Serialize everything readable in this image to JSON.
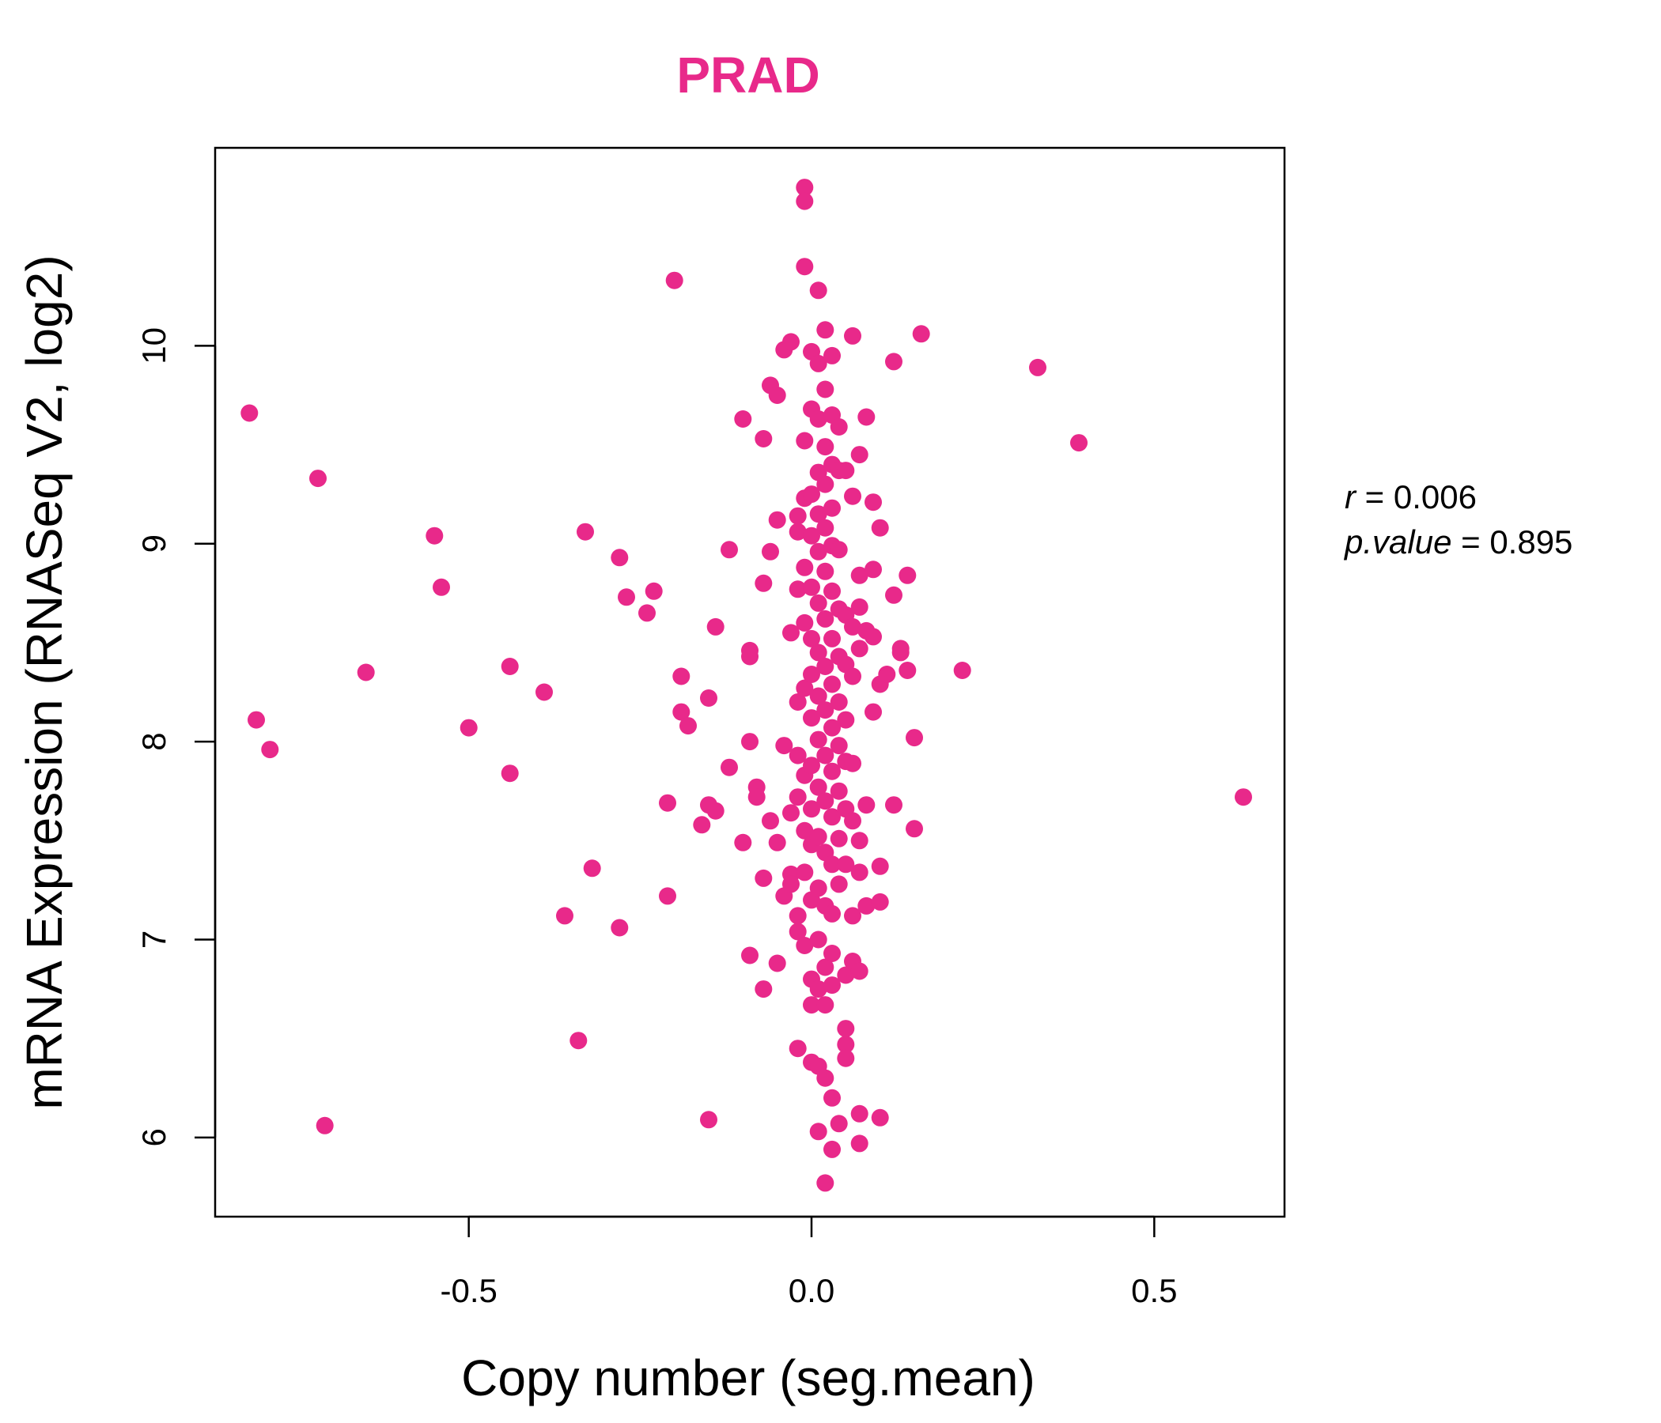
{
  "chart_data": {
    "type": "scatter",
    "title": "PRAD",
    "xlabel": "Copy number (seg.mean)",
    "ylabel": "mRNA Expression (RNASeq V2, log2)",
    "xlim": [
      -0.87,
      0.69
    ],
    "ylim": [
      5.6,
      11.0
    ],
    "x_ticks": [
      -0.5,
      0.0,
      0.5
    ],
    "x_tick_labels": [
      "-0.5",
      "0.0",
      "0.5"
    ],
    "y_ticks": [
      6,
      7,
      8,
      9,
      10
    ],
    "y_tick_labels": [
      "6",
      "7",
      "8",
      "9",
      "10"
    ],
    "grid": false,
    "legend": "none",
    "point_color": "#e8298a",
    "title_color": "#e8298a",
    "stats": {
      "r_label": "r",
      "r_value": "0.006",
      "p_label": "p.value",
      "p_value": "0.895"
    },
    "points": [
      [
        -0.82,
        9.66
      ],
      [
        -0.81,
        8.11
      ],
      [
        -0.79,
        7.96
      ],
      [
        -0.72,
        9.33
      ],
      [
        -0.71,
        6.06
      ],
      [
        -0.65,
        8.35
      ],
      [
        -0.55,
        9.04
      ],
      [
        -0.54,
        8.78
      ],
      [
        -0.5,
        8.07
      ],
      [
        -0.44,
        8.38
      ],
      [
        -0.44,
        7.84
      ],
      [
        -0.39,
        8.25
      ],
      [
        -0.33,
        9.06
      ],
      [
        -0.36,
        7.12
      ],
      [
        -0.32,
        7.36
      ],
      [
        -0.34,
        6.49
      ],
      [
        -0.28,
        8.93
      ],
      [
        -0.27,
        8.73
      ],
      [
        -0.28,
        7.06
      ],
      [
        -0.23,
        8.76
      ],
      [
        -0.24,
        8.65
      ],
      [
        -0.21,
        7.22
      ],
      [
        -0.21,
        7.69
      ],
      [
        -0.2,
        10.33
      ],
      [
        -0.19,
        8.33
      ],
      [
        -0.19,
        8.15
      ],
      [
        -0.18,
        8.08
      ],
      [
        -0.16,
        7.58
      ],
      [
        -0.15,
        8.22
      ],
      [
        -0.15,
        7.68
      ],
      [
        -0.15,
        6.09
      ],
      [
        -0.14,
        8.58
      ],
      [
        -0.14,
        7.65
      ],
      [
        -0.12,
        8.97
      ],
      [
        -0.12,
        7.87
      ],
      [
        -0.1,
        9.63
      ],
      [
        -0.1,
        7.49
      ],
      [
        -0.09,
        8.46
      ],
      [
        -0.09,
        8.43
      ],
      [
        -0.09,
        8.0
      ],
      [
        -0.09,
        6.92
      ],
      [
        -0.08,
        7.77
      ],
      [
        -0.08,
        7.72
      ],
      [
        -0.07,
        9.53
      ],
      [
        -0.07,
        8.8
      ],
      [
        -0.07,
        7.31
      ],
      [
        -0.07,
        6.75
      ],
      [
        -0.06,
        9.8
      ],
      [
        -0.06,
        8.96
      ],
      [
        -0.06,
        7.6
      ],
      [
        -0.05,
        9.75
      ],
      [
        -0.05,
        9.12
      ],
      [
        -0.05,
        7.49
      ],
      [
        -0.05,
        6.88
      ],
      [
        -0.04,
        9.98
      ],
      [
        -0.04,
        7.98
      ],
      [
        -0.04,
        7.22
      ],
      [
        -0.03,
        10.02
      ],
      [
        -0.03,
        8.55
      ],
      [
        -0.03,
        7.64
      ],
      [
        -0.03,
        7.33
      ],
      [
        -0.03,
        7.28
      ],
      [
        -0.02,
        9.14
      ],
      [
        -0.02,
        9.06
      ],
      [
        -0.02,
        8.77
      ],
      [
        -0.02,
        8.2
      ],
      [
        -0.02,
        7.93
      ],
      [
        -0.02,
        7.72
      ],
      [
        -0.02,
        7.12
      ],
      [
        -0.02,
        7.04
      ],
      [
        -0.02,
        6.45
      ],
      [
        -0.01,
        10.8
      ],
      [
        -0.01,
        10.73
      ],
      [
        -0.01,
        10.4
      ],
      [
        -0.01,
        9.52
      ],
      [
        -0.01,
        9.23
      ],
      [
        -0.01,
        8.88
      ],
      [
        -0.01,
        8.6
      ],
      [
        -0.01,
        8.27
      ],
      [
        -0.01,
        7.83
      ],
      [
        -0.01,
        7.55
      ],
      [
        -0.01,
        7.34
      ],
      [
        -0.01,
        6.97
      ],
      [
        0.0,
        9.97
      ],
      [
        0.0,
        9.68
      ],
      [
        0.0,
        9.25
      ],
      [
        0.0,
        9.04
      ],
      [
        0.0,
        8.78
      ],
      [
        0.0,
        8.52
      ],
      [
        0.0,
        8.34
      ],
      [
        0.0,
        8.12
      ],
      [
        0.0,
        7.88
      ],
      [
        0.0,
        7.66
      ],
      [
        0.0,
        7.48
      ],
      [
        0.0,
        7.2
      ],
      [
        0.0,
        6.8
      ],
      [
        0.0,
        6.67
      ],
      [
        0.0,
        6.38
      ],
      [
        0.01,
        10.28
      ],
      [
        0.01,
        9.91
      ],
      [
        0.01,
        9.63
      ],
      [
        0.01,
        9.36
      ],
      [
        0.01,
        9.15
      ],
      [
        0.01,
        8.96
      ],
      [
        0.01,
        8.7
      ],
      [
        0.01,
        8.45
      ],
      [
        0.01,
        8.23
      ],
      [
        0.01,
        8.01
      ],
      [
        0.01,
        7.77
      ],
      [
        0.01,
        7.52
      ],
      [
        0.01,
        7.26
      ],
      [
        0.01,
        7.0
      ],
      [
        0.01,
        6.75
      ],
      [
        0.01,
        6.36
      ],
      [
        0.01,
        6.03
      ],
      [
        0.02,
        10.08
      ],
      [
        0.02,
        9.78
      ],
      [
        0.02,
        9.49
      ],
      [
        0.02,
        9.3
      ],
      [
        0.02,
        9.08
      ],
      [
        0.02,
        8.86
      ],
      [
        0.02,
        8.62
      ],
      [
        0.02,
        8.38
      ],
      [
        0.02,
        8.16
      ],
      [
        0.02,
        7.93
      ],
      [
        0.02,
        7.7
      ],
      [
        0.02,
        7.44
      ],
      [
        0.02,
        7.17
      ],
      [
        0.02,
        6.86
      ],
      [
        0.02,
        6.67
      ],
      [
        0.02,
        6.3
      ],
      [
        0.02,
        5.77
      ],
      [
        0.03,
        9.95
      ],
      [
        0.03,
        9.65
      ],
      [
        0.03,
        9.4
      ],
      [
        0.03,
        9.18
      ],
      [
        0.03,
        8.99
      ],
      [
        0.03,
        8.76
      ],
      [
        0.03,
        8.52
      ],
      [
        0.03,
        8.29
      ],
      [
        0.03,
        8.07
      ],
      [
        0.03,
        7.85
      ],
      [
        0.03,
        7.62
      ],
      [
        0.03,
        7.38
      ],
      [
        0.03,
        7.13
      ],
      [
        0.03,
        6.93
      ],
      [
        0.03,
        6.77
      ],
      [
        0.03,
        6.2
      ],
      [
        0.03,
        5.94
      ],
      [
        0.04,
        9.59
      ],
      [
        0.04,
        9.37
      ],
      [
        0.04,
        8.97
      ],
      [
        0.04,
        8.67
      ],
      [
        0.04,
        8.43
      ],
      [
        0.04,
        8.2
      ],
      [
        0.04,
        7.98
      ],
      [
        0.04,
        7.75
      ],
      [
        0.04,
        7.51
      ],
      [
        0.04,
        7.28
      ],
      [
        0.04,
        6.07
      ],
      [
        0.05,
        9.37
      ],
      [
        0.05,
        8.64
      ],
      [
        0.05,
        8.39
      ],
      [
        0.05,
        8.11
      ],
      [
        0.05,
        7.9
      ],
      [
        0.05,
        7.66
      ],
      [
        0.05,
        7.38
      ],
      [
        0.05,
        6.55
      ],
      [
        0.05,
        6.47
      ],
      [
        0.05,
        6.4
      ],
      [
        0.05,
        6.82
      ],
      [
        0.06,
        10.05
      ],
      [
        0.06,
        9.24
      ],
      [
        0.06,
        8.58
      ],
      [
        0.06,
        8.33
      ],
      [
        0.06,
        7.89
      ],
      [
        0.06,
        7.6
      ],
      [
        0.06,
        7.12
      ],
      [
        0.06,
        6.89
      ],
      [
        0.07,
        9.45
      ],
      [
        0.07,
        8.84
      ],
      [
        0.07,
        8.68
      ],
      [
        0.07,
        8.47
      ],
      [
        0.07,
        7.5
      ],
      [
        0.07,
        7.34
      ],
      [
        0.07,
        6.84
      ],
      [
        0.07,
        6.12
      ],
      [
        0.07,
        5.97
      ],
      [
        0.08,
        9.64
      ],
      [
        0.08,
        8.56
      ],
      [
        0.08,
        7.68
      ],
      [
        0.08,
        7.17
      ],
      [
        0.09,
        9.21
      ],
      [
        0.09,
        8.87
      ],
      [
        0.09,
        8.53
      ],
      [
        0.09,
        8.15
      ],
      [
        0.1,
        9.08
      ],
      [
        0.1,
        8.29
      ],
      [
        0.1,
        7.37
      ],
      [
        0.1,
        7.19
      ],
      [
        0.1,
        6.1
      ],
      [
        0.11,
        8.34
      ],
      [
        0.12,
        7.68
      ],
      [
        0.12,
        9.92
      ],
      [
        0.12,
        8.74
      ],
      [
        0.13,
        8.45
      ],
      [
        0.13,
        8.47
      ],
      [
        0.14,
        8.84
      ],
      [
        0.14,
        8.36
      ],
      [
        0.15,
        8.02
      ],
      [
        0.15,
        7.56
      ],
      [
        0.16,
        10.06
      ],
      [
        0.22,
        8.36
      ],
      [
        0.33,
        9.89
      ],
      [
        0.39,
        9.51
      ],
      [
        0.63,
        7.72
      ]
    ]
  }
}
